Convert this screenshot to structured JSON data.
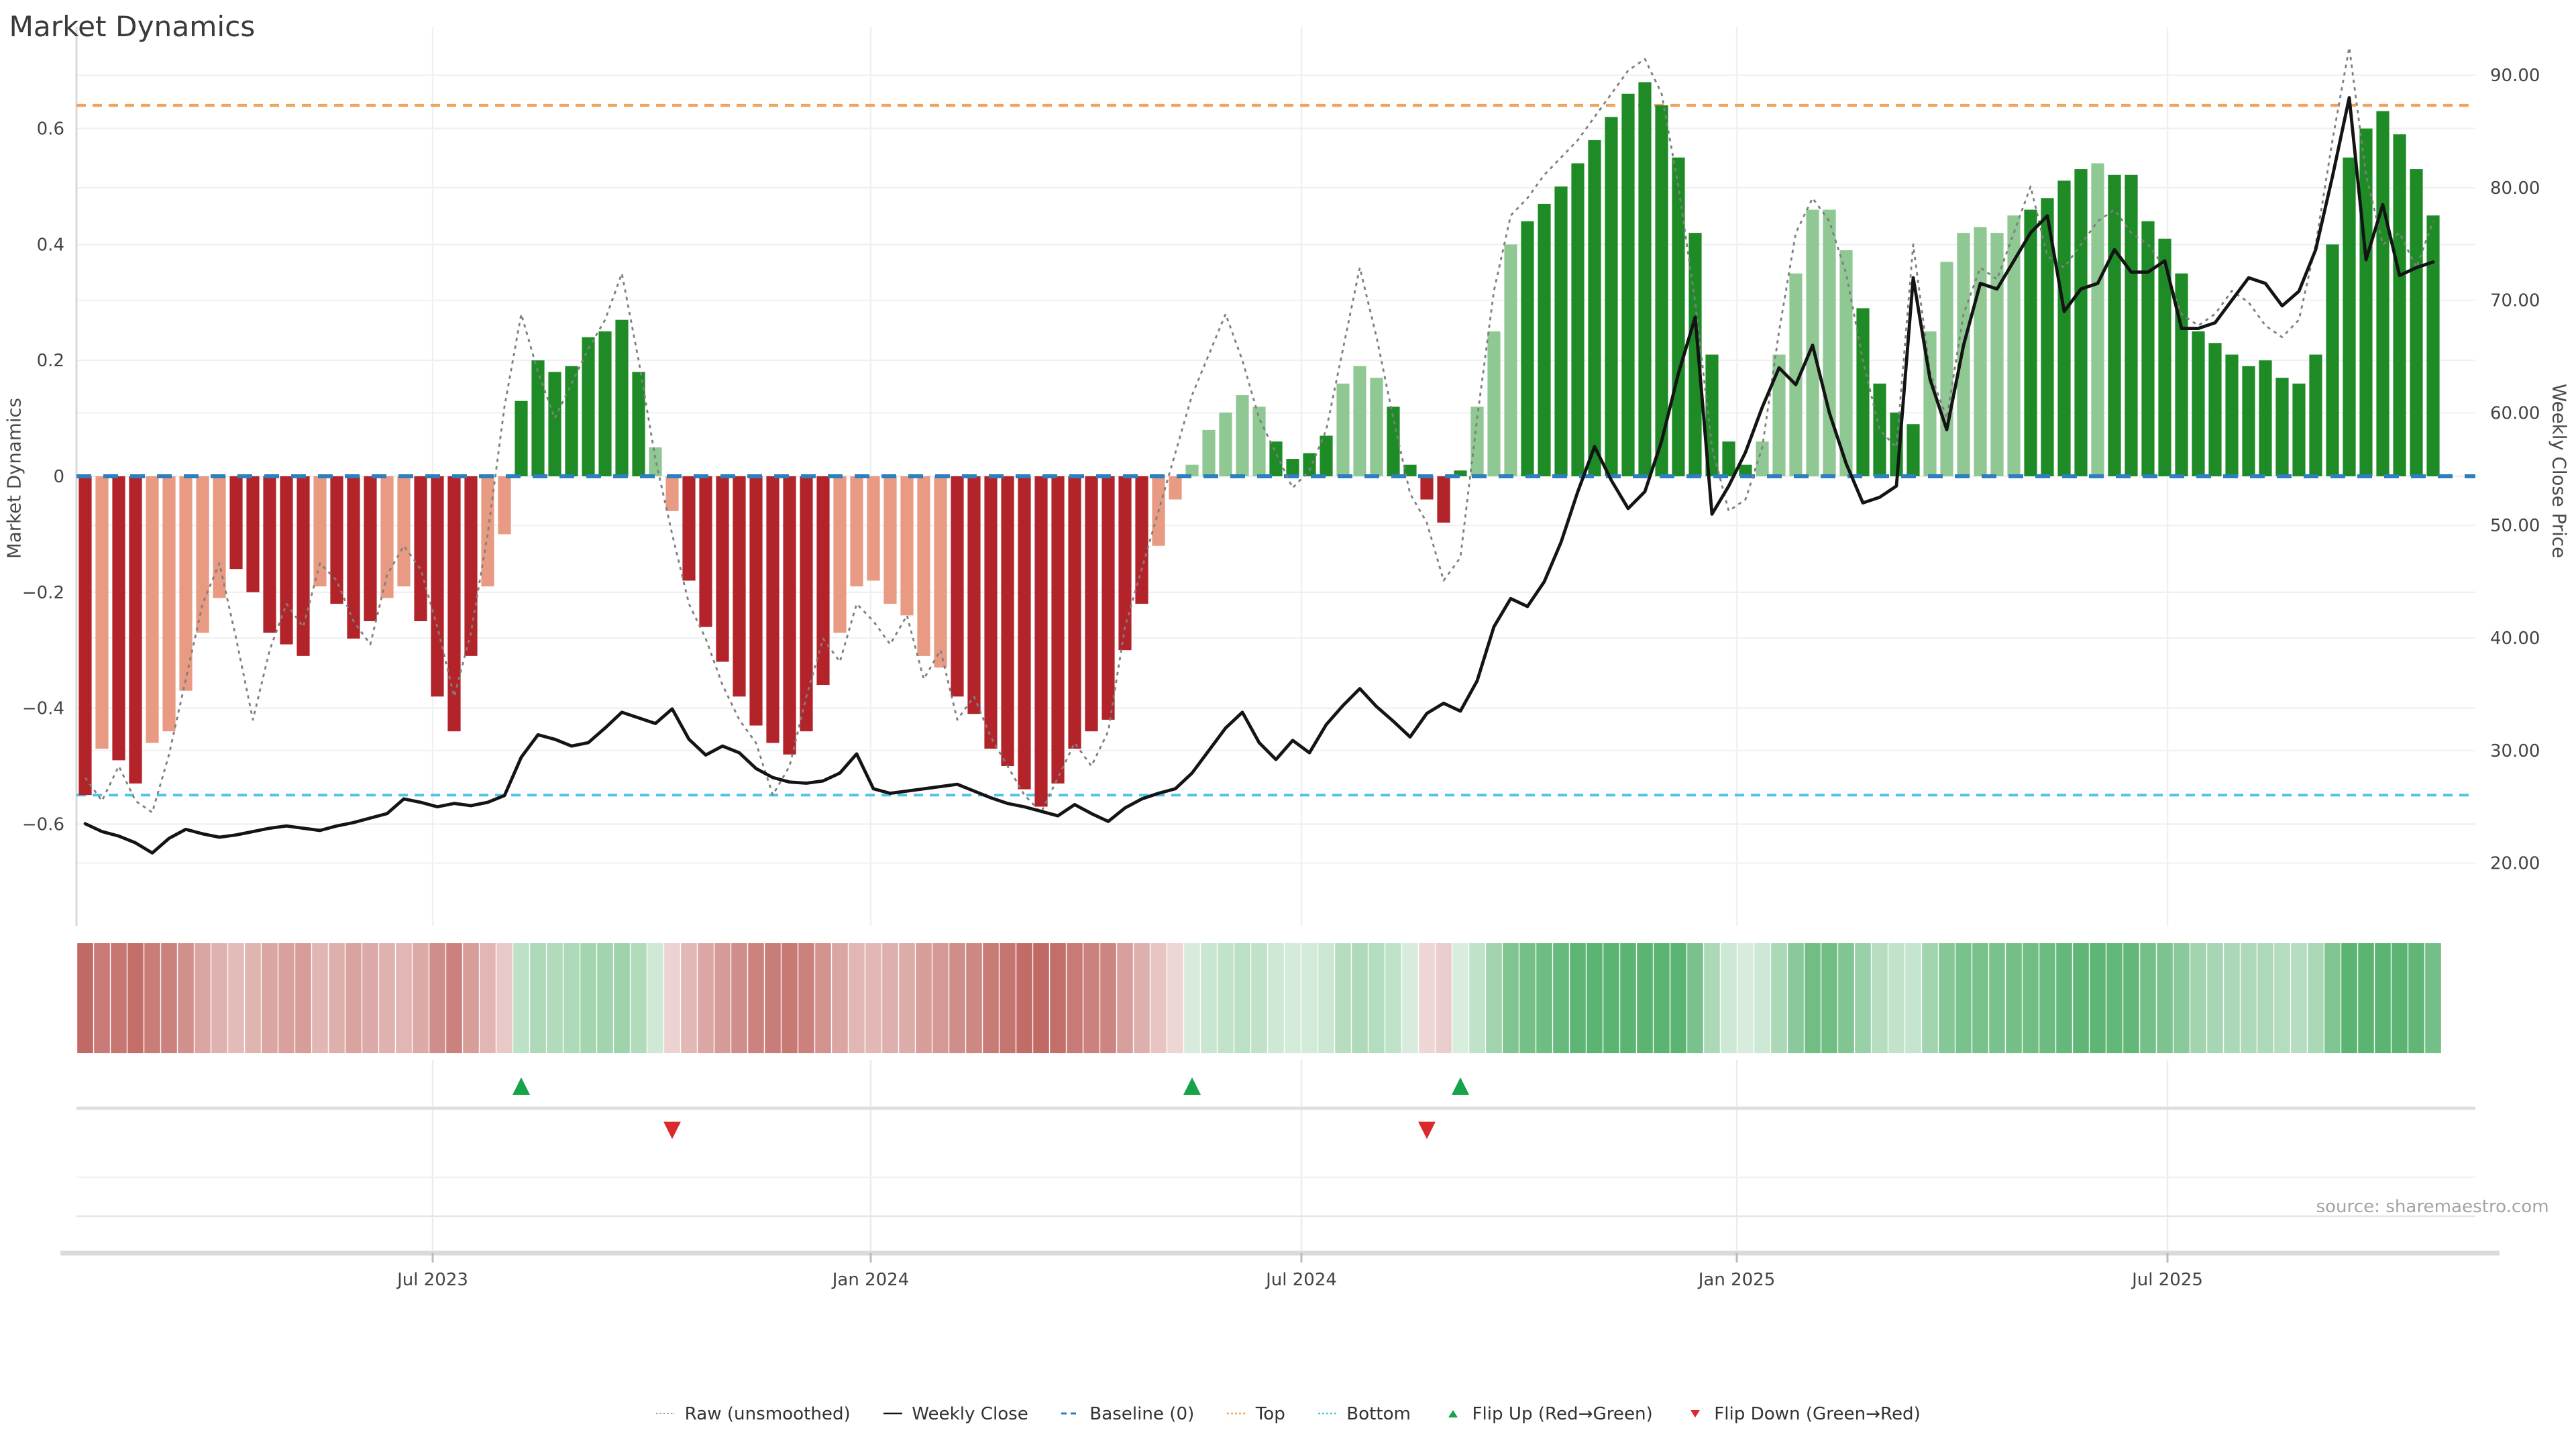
{
  "title": "Market Dynamics",
  "source": "source: sharemaestro.com",
  "axes": {
    "left_label": "Market Dynamics",
    "right_label": "Weekly Close Price",
    "left_ticks": [
      0.6,
      0.4,
      0.2,
      0,
      -0.2,
      -0.4,
      -0.6
    ],
    "right_ticks": [
      90,
      80,
      70,
      60,
      50,
      40,
      30,
      20
    ],
    "x_ticks": [
      {
        "label": "Jul 2023",
        "week": 20.72
      },
      {
        "label": "Jan 2024",
        "week": 46.84
      },
      {
        "label": "Jul 2024",
        "week": 72.52
      },
      {
        "label": "Jan 2025",
        "week": 98.48
      },
      {
        "label": "Jul 2025",
        "week": 124.16
      }
    ]
  },
  "colors": {
    "bar_dark_red": "#b2232a",
    "bar_light_red": "#e89a82",
    "bar_dark_green": "#1e8b26",
    "bar_light_green": "#8fc893",
    "baseline_blue": "#2e7fbe",
    "top_orange": "#f0a35e",
    "bottom_cyan": "#4cc4e8",
    "raw_gray": "#7f7f7f",
    "close_black": "#141414",
    "flip_up_green": "#16a34a",
    "flip_down_red": "#d92b2b",
    "heat_red": "#c16a65",
    "heat_green": "#5cb473",
    "grid": "#f0f0f3",
    "spine": "#d8d8d8"
  },
  "legend": [
    {
      "label": "Raw (unsmoothed)",
      "swatch": "raw"
    },
    {
      "label": "Weekly Close",
      "swatch": "close"
    },
    {
      "label": "Baseline (0)",
      "swatch": "baseline"
    },
    {
      "label": "Top",
      "swatch": "top"
    },
    {
      "label": "Bottom",
      "swatch": "bottom"
    },
    {
      "label": "Flip Up (Red→Green)",
      "swatch": "flip-up"
    },
    {
      "label": "Flip Down (Green→Red)",
      "swatch": "flip-down"
    }
  ],
  "chart_data": {
    "type": "bar",
    "subtype": "combo-oscillator-with-price-line-and-heatmap",
    "weeks": 141,
    "title": "Market Dynamics",
    "ylabel_left": "Market Dynamics",
    "ylabel_right": "Weekly Close Price",
    "ylim_left": [
      -0.775,
      0.775
    ],
    "ylim_right": [
      14.4,
      94.3
    ],
    "baseline": 0,
    "top_threshold": 0.64,
    "bottom_threshold": -0.55,
    "bars": {
      "values": [
        -0.55,
        -0.47,
        -0.49,
        -0.53,
        -0.46,
        -0.44,
        -0.37,
        -0.27,
        -0.21,
        -0.16,
        -0.2,
        -0.27,
        -0.29,
        -0.31,
        -0.19,
        -0.22,
        -0.28,
        -0.25,
        -0.21,
        -0.19,
        -0.25,
        -0.38,
        -0.44,
        -0.31,
        -0.19,
        -0.1,
        0.13,
        0.2,
        0.18,
        0.19,
        0.24,
        0.25,
        0.27,
        0.18,
        0.05,
        -0.06,
        -0.18,
        -0.26,
        -0.32,
        -0.38,
        -0.43,
        -0.46,
        -0.48,
        -0.44,
        -0.36,
        -0.27,
        -0.19,
        -0.18,
        -0.22,
        -0.24,
        -0.31,
        -0.33,
        -0.38,
        -0.41,
        -0.47,
        -0.5,
        -0.54,
        -0.57,
        -0.53,
        -0.47,
        -0.44,
        -0.42,
        -0.3,
        -0.22,
        -0.12,
        -0.04,
        0.02,
        0.08,
        0.11,
        0.14,
        0.12,
        0.06,
        0.03,
        0.04,
        0.07,
        0.16,
        0.19,
        0.17,
        0.12,
        0.02,
        -0.04,
        -0.08,
        0.01,
        0.12,
        0.25,
        0.4,
        0.44,
        0.47,
        0.5,
        0.54,
        0.58,
        0.62,
        0.66,
        0.68,
        0.64,
        0.55,
        0.42,
        0.21,
        0.06,
        0.02,
        0.06,
        0.21,
        0.35,
        0.46,
        0.46,
        0.39,
        0.29,
        0.16,
        0.11,
        0.09,
        0.25,
        0.37,
        0.42,
        0.43,
        0.42,
        0.45,
        0.46,
        0.48,
        0.51,
        0.53,
        0.54,
        0.52,
        0.52,
        0.44,
        0.41,
        0.35,
        0.25,
        0.23,
        0.21,
        0.19,
        0.2,
        0.17,
        0.16,
        0.21,
        0.4,
        0.55,
        0.6,
        0.63,
        0.59,
        0.53,
        0.45
      ],
      "tone": "dlddllllldddddldddllddddllddddddddlldddddddddlllllllddddddddddddlllllllddddllldddddlllddddddddddddddllllllddddllllllddd1ldddddd"
    },
    "raw": [
      -0.52,
      -0.56,
      -0.5,
      -0.56,
      -0.58,
      -0.48,
      -0.35,
      -0.22,
      -0.15,
      -0.28,
      -0.42,
      -0.3,
      -0.22,
      -0.26,
      -0.15,
      -0.18,
      -0.25,
      -0.29,
      -0.17,
      -0.12,
      -0.16,
      -0.26,
      -0.38,
      -0.27,
      -0.1,
      0.12,
      0.28,
      0.18,
      0.1,
      0.16,
      0.22,
      0.27,
      0.35,
      0.2,
      0.03,
      -0.1,
      -0.22,
      -0.28,
      -0.36,
      -0.42,
      -0.46,
      -0.55,
      -0.5,
      -0.38,
      -0.28,
      -0.32,
      -0.22,
      -0.25,
      -0.29,
      -0.24,
      -0.35,
      -0.3,
      -0.42,
      -0.38,
      -0.45,
      -0.5,
      -0.55,
      -0.58,
      -0.52,
      -0.46,
      -0.5,
      -0.44,
      -0.26,
      -0.16,
      -0.06,
      0.04,
      0.14,
      0.21,
      0.28,
      0.2,
      0.1,
      0.04,
      -0.02,
      0.01,
      0.08,
      0.22,
      0.36,
      0.24,
      0.1,
      -0.03,
      -0.08,
      -0.18,
      -0.14,
      0.1,
      0.32,
      0.45,
      0.48,
      0.52,
      0.55,
      0.58,
      0.62,
      0.66,
      0.7,
      0.72,
      0.66,
      0.5,
      0.3,
      0.05,
      -0.06,
      -0.04,
      0.05,
      0.25,
      0.42,
      0.48,
      0.44,
      0.35,
      0.2,
      0.08,
      0.05,
      0.4,
      0.18,
      0.1,
      0.28,
      0.36,
      0.34,
      0.42,
      0.5,
      0.38,
      0.36,
      0.4,
      0.44,
      0.46,
      0.42,
      0.4,
      0.36,
      0.28,
      0.26,
      0.28,
      0.32,
      0.3,
      0.26,
      0.24,
      0.27,
      0.4,
      0.58,
      0.74,
      0.52,
      0.4,
      0.42,
      0.36,
      0.44
    ],
    "close": [
      23.5,
      22.8,
      22.4,
      21.8,
      20.9,
      22.2,
      23.0,
      22.6,
      22.3,
      22.5,
      22.8,
      23.1,
      23.3,
      23.1,
      22.9,
      23.3,
      23.6,
      24.0,
      24.4,
      25.7,
      25.4,
      25.0,
      25.3,
      25.1,
      25.4,
      26.0,
      29.4,
      31.4,
      31.0,
      30.4,
      30.7,
      32.0,
      33.4,
      32.9,
      32.4,
      33.7,
      31.0,
      29.6,
      30.4,
      29.8,
      28.4,
      27.6,
      27.2,
      27.1,
      27.3,
      28.0,
      29.7,
      26.6,
      26.2,
      26.4,
      26.6,
      26.8,
      27.0,
      26.4,
      25.8,
      25.3,
      25.0,
      24.6,
      24.2,
      25.2,
      24.4,
      23.7,
      24.9,
      25.7,
      26.2,
      26.6,
      28.0,
      30.0,
      32.0,
      33.4,
      30.7,
      29.2,
      30.9,
      29.8,
      32.3,
      34.0,
      35.5,
      33.9,
      32.6,
      31.2,
      33.3,
      34.2,
      33.5,
      36.2,
      41.0,
      43.5,
      42.8,
      45.0,
      48.5,
      53.0,
      57.0,
      54.0,
      51.5,
      53.0,
      57.5,
      63.5,
      68.5,
      51.0,
      53.5,
      56.5,
      60.5,
      64.0,
      62.5,
      66.0,
      60.0,
      55.5,
      52.0,
      52.5,
      53.5,
      72.0,
      63.0,
      58.5,
      66.0,
      71.5,
      71.0,
      73.5,
      76.0,
      77.5,
      69.0,
      71.0,
      71.5,
      74.5,
      72.5,
      72.5,
      73.5,
      67.5,
      67.5,
      68.0,
      70.0,
      72.0,
      71.5,
      69.5,
      70.8,
      74.5,
      81.0,
      88.0,
      73.6,
      78.5,
      72.2,
      72.9,
      73.4
    ],
    "flip_up_weeks": [
      26,
      66,
      82
    ],
    "flip_down_weeks": [
      35,
      80
    ],
    "heatmap": "derived-from-bars-values"
  }
}
